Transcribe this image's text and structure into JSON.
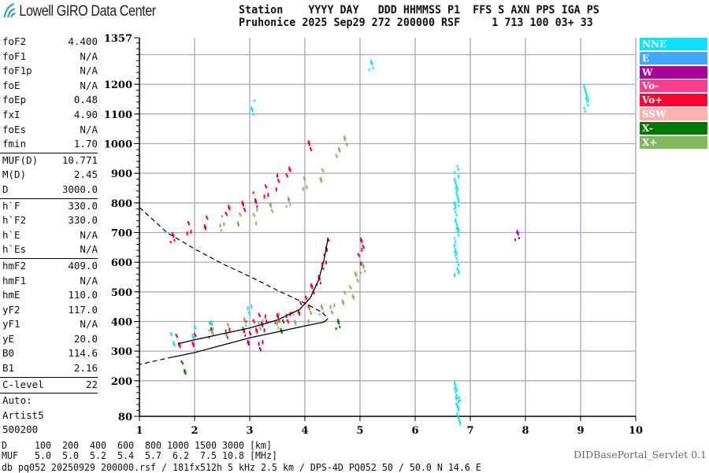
{
  "header": {
    "logo_text": "Lowell GIRO Data Center",
    "row1": "Station    YYYY DAY   DDD HHMMSS P1  FFS S AXN PPS IGA PS",
    "row2": "Pruhonice 2025 Sep29 272 200000 RSF     1 713 100 03+ 33"
  },
  "params": {
    "group1": [
      {
        "label": "foF2",
        "value": "4.400"
      },
      {
        "label": "foF1",
        "value": "N/A"
      },
      {
        "label": "foF1p",
        "value": "N/A"
      },
      {
        "label": "foE",
        "value": "N/A"
      },
      {
        "label": "foEp",
        "value": "0.48"
      },
      {
        "label": "fxI",
        "value": "4.90"
      },
      {
        "label": "foEs",
        "value": "N/A"
      },
      {
        "label": "fmin",
        "value": "1.70"
      }
    ],
    "group2": [
      {
        "label": "MUF(D)",
        "value": "10.771"
      },
      {
        "label": "M(D)",
        "value": "2.45"
      },
      {
        "label": "D",
        "value": "3000.0"
      }
    ],
    "group3": [
      {
        "label": "h`F",
        "value": "330.0"
      },
      {
        "label": "h`F2",
        "value": "330.0"
      },
      {
        "label": "h`E",
        "value": "N/A"
      },
      {
        "label": "h`Es",
        "value": "N/A"
      }
    ],
    "group4": [
      {
        "label": "hmF2",
        "value": "409.0"
      },
      {
        "label": "hmF1",
        "value": "N/A"
      },
      {
        "label": "hmE",
        "value": "110.0"
      },
      {
        "label": "yF2",
        "value": "117.0"
      },
      {
        "label": "yF1",
        "value": "N/A"
      },
      {
        "label": "yE",
        "value": "20.0"
      },
      {
        "label": "B0",
        "value": "114.6"
      },
      {
        "label": "B1",
        "value": "2.16"
      }
    ],
    "group5": [
      {
        "label": "C-level",
        "value": "22"
      }
    ],
    "auto": [
      "Auto:",
      "Artist5",
      "500200"
    ]
  },
  "legend": [
    {
      "label": "NNE",
      "color": "#0fe0fb"
    },
    {
      "label": "E",
      "color": "#40a8ff"
    },
    {
      "label": "W",
      "color": "#a8009c"
    },
    {
      "label": "Vo-",
      "color": "#ff3c90"
    },
    {
      "label": "Vo+",
      "color": "#ff0033"
    },
    {
      "label": "SSW",
      "color": "#f8b4ac"
    },
    {
      "label": "X-",
      "color": "#007800"
    },
    {
      "label": "X+",
      "color": "#84b85c"
    }
  ],
  "bottom": {
    "d_row": "D     100  200  400  600  800 1000 1500 3000 [km]",
    "muf_row": "MUF   5.0  5.0  5.2  5.4  5.7  6.2  7.5 10.8 [MHz]",
    "footer": "db pq052 20250929 200000.rsf / 181fx512h 5 kHz 2.5 km / DPS-4D PQ052 50 / 50.0 N 14.6 E",
    "servlet": "DIDBasePortal_Servlet 0.1"
  },
  "chart_data": {
    "type": "scatter",
    "xlim": [
      1,
      10
    ],
    "ylim": [
      80,
      1357
    ],
    "x_ticks": [
      "1",
      "2",
      "3",
      "4",
      "5",
      "6",
      "7",
      "8",
      "9",
      "10"
    ],
    "y_ticks": [
      "1357",
      "1200",
      "1100",
      "1000",
      "900",
      "800",
      "700",
      "600",
      "500",
      "400",
      "300",
      "200",
      "80"
    ],
    "grid": true,
    "legend_placement": "right",
    "series": [
      {
        "name": "Vo+",
        "color": "#ff0033",
        "points": [
          [
            1.7,
            330
          ],
          [
            2.0,
            345
          ],
          [
            2.3,
            352
          ],
          [
            2.6,
            362
          ],
          [
            2.9,
            375
          ],
          [
            3.1,
            385
          ],
          [
            3.3,
            395
          ],
          [
            3.5,
            405
          ],
          [
            3.7,
            420
          ],
          [
            3.9,
            440
          ],
          [
            4.05,
            470
          ],
          [
            4.15,
            500
          ],
          [
            4.25,
            540
          ],
          [
            4.35,
            600
          ],
          [
            4.4,
            660
          ],
          [
            5.0,
            620
          ],
          [
            5.05,
            660
          ],
          [
            1.6,
            690
          ],
          [
            1.9,
            710
          ],
          [
            2.2,
            740
          ],
          [
            2.6,
            765
          ],
          [
            2.9,
            790
          ],
          [
            3.1,
            810
          ],
          [
            3.3,
            840
          ],
          [
            3.5,
            870
          ],
          [
            3.7,
            900
          ],
          [
            4.1,
            1000
          ]
        ]
      },
      {
        "name": "X+",
        "color": "#84b85c",
        "points": [
          [
            2.3,
            372
          ],
          [
            2.6,
            378
          ],
          [
            2.9,
            385
          ],
          [
            3.2,
            390
          ],
          [
            3.5,
            400
          ],
          [
            3.8,
            412
          ],
          [
            4.1,
            425
          ],
          [
            4.3,
            435
          ],
          [
            4.5,
            450
          ],
          [
            4.7,
            475
          ],
          [
            4.85,
            505
          ],
          [
            4.95,
            540
          ],
          [
            5.05,
            580
          ],
          [
            2.5,
            730
          ],
          [
            2.8,
            745
          ],
          [
            3.1,
            755
          ],
          [
            3.4,
            780
          ],
          [
            3.7,
            810
          ],
          [
            4.0,
            860
          ],
          [
            4.3,
            900
          ],
          [
            4.6,
            960
          ],
          [
            4.75,
            1010
          ]
        ]
      },
      {
        "name": "NNE",
        "color": "#0fe0fb",
        "points": [
          [
            1.6,
            335
          ],
          [
            2.0,
            370
          ],
          [
            2.3,
            375
          ],
          [
            3.0,
            440
          ],
          [
            3.05,
            1120
          ],
          [
            6.75,
            600
          ],
          [
            6.75,
            700
          ],
          [
            6.75,
            800
          ],
          [
            6.75,
            880
          ],
          [
            6.78,
            100
          ],
          [
            6.75,
            150
          ],
          [
            9.1,
            1150
          ],
          [
            5.2,
            1265
          ]
        ]
      },
      {
        "name": "W",
        "color": "#a8009c",
        "points": [
          [
            3.2,
            400
          ],
          [
            3.0,
            350
          ],
          [
            7.85,
            680
          ],
          [
            3.2,
            320
          ]
        ]
      },
      {
        "name": "X-",
        "color": "#007800",
        "points": [
          [
            1.8,
            240
          ],
          [
            3.6,
            390
          ],
          [
            4.6,
            380
          ]
        ]
      }
    ],
    "profile_solid": [
      [
        1.7,
        325
      ],
      [
        2.0,
        338
      ],
      [
        2.5,
        358
      ],
      [
        3.0,
        378
      ],
      [
        3.5,
        405
      ],
      [
        3.9,
        440
      ],
      [
        4.1,
        480
      ],
      [
        4.25,
        540
      ],
      [
        4.35,
        610
      ],
      [
        4.42,
        680
      ]
    ],
    "profile_lower": [
      [
        4.42,
        410
      ],
      [
        4.35,
        398
      ],
      [
        4.0,
        385
      ],
      [
        3.5,
        365
      ],
      [
        3.0,
        345
      ],
      [
        2.5,
        320
      ],
      [
        2.0,
        295
      ],
      [
        1.6,
        280
      ],
      [
        1.0,
        255
      ]
    ],
    "muf_curve_dashed": [
      [
        1.0,
        785
      ],
      [
        1.5,
        700
      ],
      [
        2.0,
        645
      ],
      [
        2.5,
        595
      ],
      [
        3.0,
        552
      ],
      [
        3.5,
        505
      ],
      [
        4.0,
        462
      ],
      [
        4.3,
        432
      ],
      [
        4.42,
        412
      ]
    ]
  }
}
